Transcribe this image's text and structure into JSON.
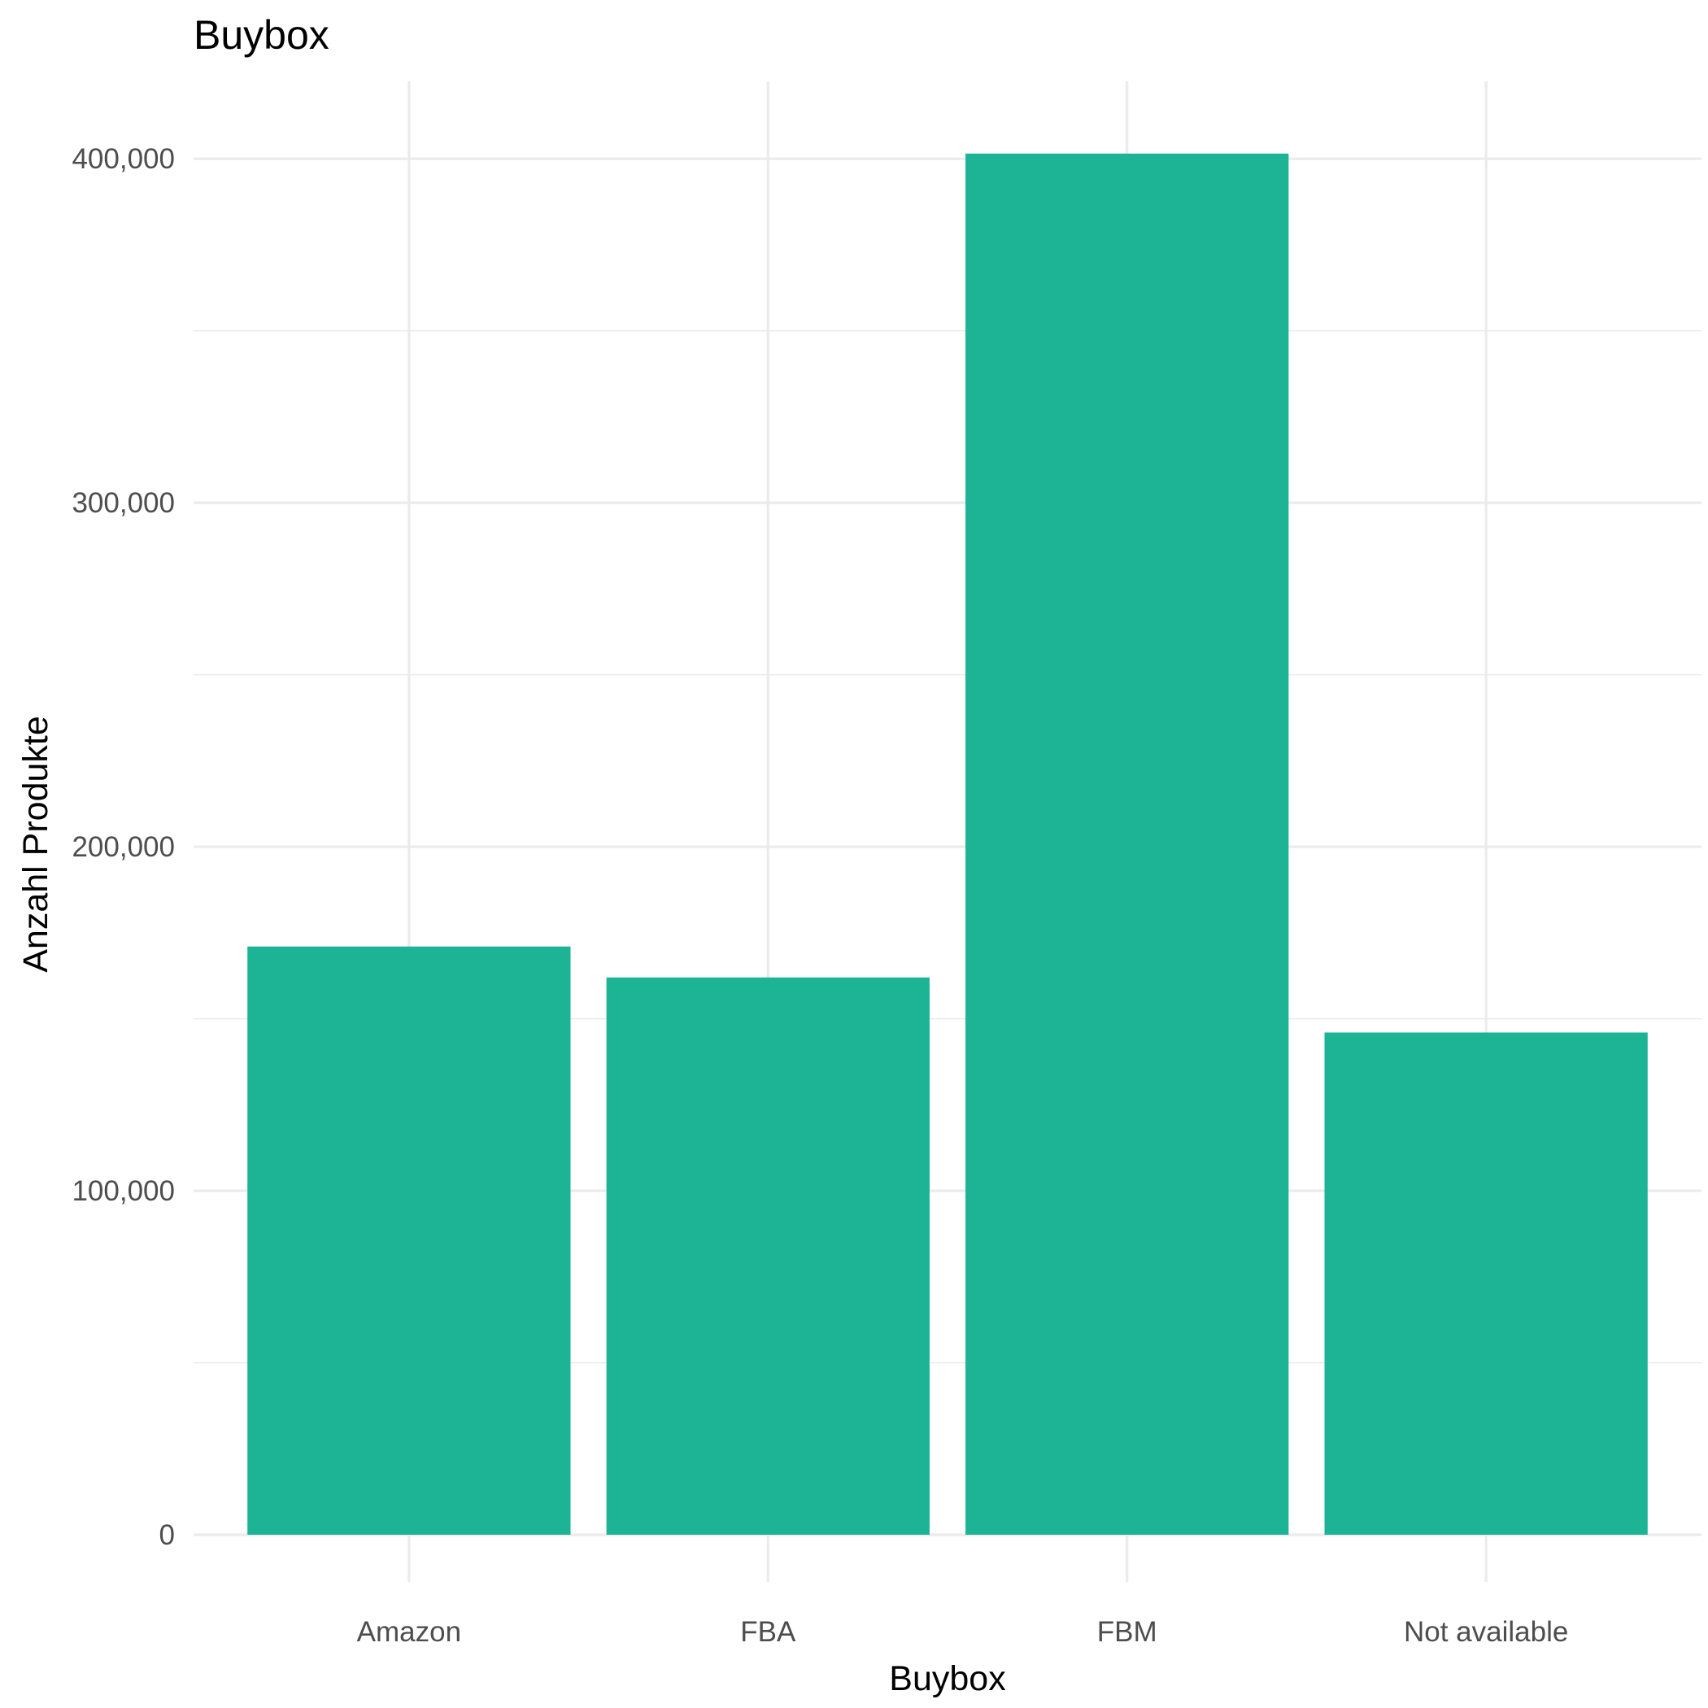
{
  "chart_data": {
    "type": "bar",
    "title": "Buybox",
    "xlabel": "Buybox",
    "ylabel": "Anzahl Produkte",
    "categories": [
      "Amazon",
      "FBA",
      "FBM",
      "Not available"
    ],
    "values": [
      171000,
      162000,
      401500,
      146000
    ],
    "ylim": [
      0,
      422500
    ],
    "y_ticks": [
      0,
      100000,
      200000,
      300000,
      400000
    ],
    "y_tick_labels": [
      "0",
      "100,000",
      "200,000",
      "300,000",
      "400,000"
    ],
    "bar_color": "#1cb495",
    "grid": true,
    "legend": "none"
  }
}
